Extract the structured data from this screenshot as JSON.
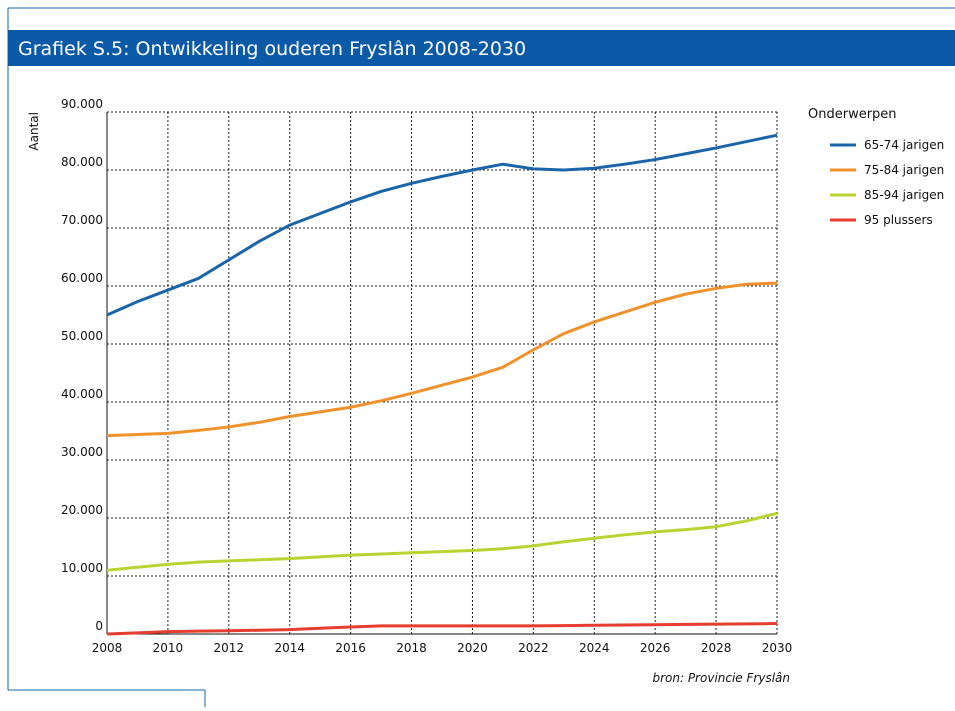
{
  "chart_data": {
    "type": "line",
    "title": "Grafiek S.5: Ontwikkeling ouderen Fryslân 2008-2030",
    "y_label": "Aantal",
    "legend_title": "Onderwerpen",
    "source": "bron: Provincie Fryslân",
    "x": [
      2008,
      2009,
      2010,
      2011,
      2012,
      2013,
      2014,
      2015,
      2016,
      2017,
      2018,
      2019,
      2020,
      2021,
      2022,
      2023,
      2024,
      2025,
      2026,
      2027,
      2028,
      2029,
      2030
    ],
    "xlim": [
      2008,
      2030
    ],
    "xticks": [
      2008,
      2010,
      2012,
      2014,
      2016,
      2018,
      2020,
      2022,
      2024,
      2026,
      2028,
      2030
    ],
    "ylim": [
      0,
      90000
    ],
    "yticks": [
      0,
      {
        "value": 10000,
        "label": "10.000"
      },
      {
        "value": 20000,
        "label": "20.000"
      },
      {
        "value": 30000,
        "label": "30.000"
      },
      {
        "value": 40000,
        "label": "40.000"
      },
      {
        "value": 50000,
        "label": "50.000"
      },
      {
        "value": 60000,
        "label": "60.000"
      },
      {
        "value": 70000,
        "label": "70.000"
      },
      {
        "value": 80000,
        "label": "80.000"
      },
      {
        "value": 90000,
        "label": "90.000"
      }
    ],
    "grid": true,
    "legend": "right",
    "series": [
      {
        "name": "65-74 jarigen",
        "color": "#1a65aa",
        "values": [
          55000,
          57300,
          59300,
          61300,
          64500,
          67700,
          70500,
          72500,
          74500,
          76300,
          77700,
          78900,
          80000,
          81000,
          80200,
          80000,
          80300,
          81000,
          81800,
          82800,
          83800,
          84900,
          86000
        ]
      },
      {
        "name": "75-84 jarigen",
        "color": "#f0922b",
        "values": [
          34200,
          34400,
          34600,
          35100,
          35700,
          36500,
          37500,
          38300,
          39100,
          40200,
          41500,
          42900,
          44300,
          46000,
          49000,
          51800,
          53800,
          55500,
          57200,
          58600,
          59600,
          60300,
          60500
        ]
      },
      {
        "name": "85-94 jarigen",
        "color": "#b9d432",
        "values": [
          11000,
          11500,
          12000,
          12400,
          12600,
          12800,
          13000,
          13300,
          13600,
          13800,
          14000,
          14200,
          14400,
          14700,
          15200,
          15900,
          16500,
          17100,
          17600,
          18000,
          18500,
          19500,
          20800
        ]
      },
      {
        "name": "95 plussers",
        "color": "#e53d2f",
        "values": [
          0,
          200,
          400,
          500,
          550,
          650,
          750,
          1000,
          1200,
          1400,
          1400,
          1400,
          1400,
          1400,
          1400,
          1450,
          1500,
          1550,
          1600,
          1650,
          1700,
          1750,
          1800
        ]
      }
    ]
  }
}
